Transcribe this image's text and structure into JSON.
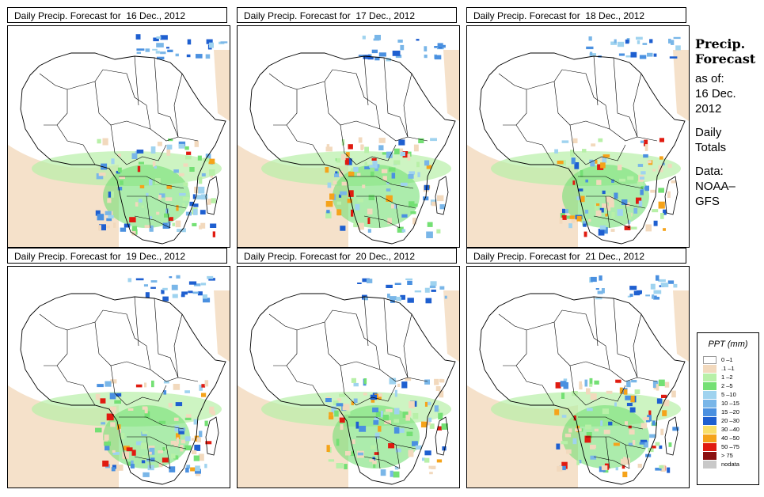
{
  "panels": [
    {
      "title": "Daily Precip. Forecast for  16 Dec., 2012",
      "seed": 11
    },
    {
      "title": "Daily Precip. Forecast for  17 Dec., 2012",
      "seed": 23
    },
    {
      "title": "Daily Precip. Forecast for  18 Dec., 2012",
      "seed": 37
    },
    {
      "title": "Daily Precip. Forecast for  19 Dec., 2012",
      "seed": 41
    },
    {
      "title": "Daily Precip. Forecast for  20 Dec., 2012",
      "seed": 53
    },
    {
      "title": "Daily Precip. Forecast for  21 Dec., 2012",
      "seed": 67
    }
  ],
  "side": {
    "title_line1": "Precip.",
    "title_line2": "Forecast",
    "asof_label": "as of:",
    "date_line1": "16 Dec.",
    "date_line2": "2012",
    "totals_line1": "Daily",
    "totals_line2": "Totals",
    "data_label": "Data:",
    "source_line1": "NOAA–",
    "source_line2": "GFS"
  },
  "legend": {
    "title": "PPT (mm)",
    "classes": [
      {
        "label": "0 –1",
        "color": "#ffffff"
      },
      {
        "label": ".1 –1",
        "color": "#f2d9bd"
      },
      {
        "label": "1 –2",
        "color": "#b8f0a8"
      },
      {
        "label": "2 –5",
        "color": "#74e074"
      },
      {
        "label": "5 –10",
        "color": "#9fd3ef"
      },
      {
        "label": "10 –15",
        "color": "#79b6e8"
      },
      {
        "label": "15 –20",
        "color": "#4a90e0"
      },
      {
        "label": "20 –30",
        "color": "#1e5fd0"
      },
      {
        "label": "30 –40",
        "color": "#f8df6a"
      },
      {
        "label": "40 –50",
        "color": "#f5a31a"
      },
      {
        "label": "50 –75",
        "color": "#e01b10"
      },
      {
        "label": "> 75",
        "color": "#8b1010"
      },
      {
        "label": "nodata",
        "color": "#c8c8c8"
      }
    ]
  }
}
